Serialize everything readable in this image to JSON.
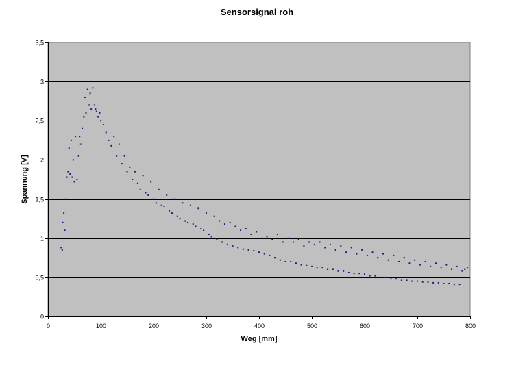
{
  "chart_data": {
    "type": "scatter",
    "title": "Sensorsignal roh",
    "xlabel": "Weg [mm]",
    "ylabel": "Spannung [V]",
    "xlim": [
      0,
      800
    ],
    "ylim": [
      0,
      3.5
    ],
    "x_ticks": [
      "0",
      "100",
      "200",
      "300",
      "400",
      "500",
      "600",
      "700",
      "800"
    ],
    "y_ticks": [
      "0",
      "0,5",
      "1",
      "1,5",
      "2",
      "2,5",
      "3",
      "3,5"
    ],
    "grid": "horizontal",
    "legend": "none",
    "colors": {
      "plot_area": "#c0c0c0",
      "marker": "#1a1a80",
      "gridline": "#000000"
    },
    "series": [
      {
        "values": [
          [
            25,
            0.88
          ],
          [
            27,
            0.85
          ],
          [
            28,
            1.2
          ],
          [
            30,
            1.32
          ],
          [
            32,
            1.1
          ],
          [
            34,
            1.5
          ],
          [
            36,
            1.78
          ],
          [
            38,
            1.85
          ],
          [
            40,
            2.15
          ],
          [
            42,
            1.82
          ],
          [
            44,
            2.25
          ],
          [
            46,
            1.78
          ],
          [
            48,
            2.0
          ],
          [
            50,
            1.72
          ],
          [
            52,
            2.3
          ],
          [
            55,
            1.75
          ],
          [
            58,
            2.05
          ],
          [
            60,
            2.3
          ],
          [
            62,
            2.2
          ],
          [
            65,
            2.4
          ],
          [
            68,
            2.55
          ],
          [
            70,
            2.8
          ],
          [
            72,
            2.6
          ],
          [
            75,
            2.9
          ],
          [
            78,
            2.7
          ],
          [
            80,
            2.85
          ],
          [
            82,
            2.65
          ],
          [
            85,
            2.92
          ],
          [
            88,
            2.7
          ],
          [
            90,
            2.65
          ],
          [
            92,
            2.62
          ],
          [
            95,
            2.55
          ],
          [
            98,
            2.6
          ],
          [
            100,
            2.5
          ],
          [
            105,
            2.45
          ],
          [
            110,
            2.35
          ],
          [
            115,
            2.25
          ],
          [
            120,
            2.18
          ],
          [
            125,
            2.3
          ],
          [
            130,
            2.05
          ],
          [
            135,
            2.2
          ],
          [
            140,
            1.95
          ],
          [
            145,
            2.05
          ],
          [
            150,
            1.85
          ],
          [
            155,
            1.9
          ],
          [
            160,
            1.75
          ],
          [
            165,
            1.85
          ],
          [
            170,
            1.7
          ],
          [
            175,
            1.62
          ],
          [
            180,
            1.8
          ],
          [
            185,
            1.58
          ],
          [
            190,
            1.55
          ],
          [
            195,
            1.72
          ],
          [
            200,
            1.5
          ],
          [
            205,
            1.45
          ],
          [
            210,
            1.62
          ],
          [
            215,
            1.42
          ],
          [
            220,
            1.4
          ],
          [
            225,
            1.55
          ],
          [
            230,
            1.35
          ],
          [
            235,
            1.32
          ],
          [
            240,
            1.5
          ],
          [
            245,
            1.28
          ],
          [
            250,
            1.25
          ],
          [
            255,
            1.45
          ],
          [
            260,
            1.22
          ],
          [
            265,
            1.2
          ],
          [
            270,
            1.42
          ],
          [
            275,
            1.18
          ],
          [
            280,
            1.15
          ],
          [
            285,
            1.38
          ],
          [
            290,
            1.12
          ],
          [
            295,
            1.1
          ],
          [
            300,
            1.32
          ],
          [
            305,
            1.05
          ],
          [
            310,
            1.02
          ],
          [
            315,
            1.28
          ],
          [
            320,
            0.98
          ],
          [
            325,
            1.22
          ],
          [
            330,
            0.95
          ],
          [
            335,
            1.18
          ],
          [
            340,
            0.92
          ],
          [
            345,
            1.2
          ],
          [
            350,
            0.9
          ],
          [
            355,
            1.15
          ],
          [
            360,
            0.88
          ],
          [
            365,
            1.1
          ],
          [
            370,
            0.86
          ],
          [
            375,
            1.12
          ],
          [
            380,
            0.85
          ],
          [
            385,
            1.05
          ],
          [
            390,
            0.84
          ],
          [
            395,
            1.08
          ],
          [
            400,
            0.82
          ],
          [
            405,
            1.0
          ],
          [
            410,
            0.8
          ],
          [
            415,
            1.02
          ],
          [
            420,
            0.78
          ],
          [
            425,
            0.98
          ],
          [
            430,
            0.75
          ],
          [
            435,
            1.05
          ],
          [
            440,
            0.72
          ],
          [
            445,
            0.95
          ],
          [
            450,
            0.7
          ],
          [
            455,
            1.0
          ],
          [
            460,
            0.7
          ],
          [
            465,
            0.95
          ],
          [
            470,
            0.68
          ],
          [
            475,
            0.98
          ],
          [
            480,
            0.66
          ],
          [
            485,
            0.9
          ],
          [
            490,
            0.65
          ],
          [
            495,
            0.95
          ],
          [
            500,
            0.64
          ],
          [
            505,
            0.92
          ],
          [
            510,
            0.62
          ],
          [
            515,
            0.95
          ],
          [
            520,
            0.62
          ],
          [
            525,
            0.88
          ],
          [
            530,
            0.6
          ],
          [
            535,
            0.92
          ],
          [
            540,
            0.6
          ],
          [
            545,
            0.85
          ],
          [
            550,
            0.58
          ],
          [
            555,
            0.9
          ],
          [
            560,
            0.58
          ],
          [
            565,
            0.82
          ],
          [
            570,
            0.56
          ],
          [
            575,
            0.88
          ],
          [
            580,
            0.55
          ],
          [
            585,
            0.8
          ],
          [
            590,
            0.55
          ],
          [
            595,
            0.85
          ],
          [
            600,
            0.54
          ],
          [
            605,
            0.78
          ],
          [
            610,
            0.52
          ],
          [
            615,
            0.82
          ],
          [
            620,
            0.52
          ],
          [
            625,
            0.75
          ],
          [
            630,
            0.5
          ],
          [
            635,
            0.8
          ],
          [
            640,
            0.5
          ],
          [
            645,
            0.72
          ],
          [
            650,
            0.48
          ],
          [
            655,
            0.78
          ],
          [
            660,
            0.48
          ],
          [
            665,
            0.7
          ],
          [
            670,
            0.46
          ],
          [
            675,
            0.75
          ],
          [
            680,
            0.46
          ],
          [
            685,
            0.68
          ],
          [
            690,
            0.45
          ],
          [
            695,
            0.72
          ],
          [
            700,
            0.45
          ],
          [
            705,
            0.66
          ],
          [
            710,
            0.44
          ],
          [
            715,
            0.7
          ],
          [
            720,
            0.44
          ],
          [
            725,
            0.64
          ],
          [
            730,
            0.43
          ],
          [
            735,
            0.68
          ],
          [
            740,
            0.43
          ],
          [
            745,
            0.62
          ],
          [
            750,
            0.42
          ],
          [
            755,
            0.66
          ],
          [
            760,
            0.42
          ],
          [
            765,
            0.6
          ],
          [
            770,
            0.41
          ],
          [
            775,
            0.64
          ],
          [
            780,
            0.41
          ],
          [
            785,
            0.58
          ],
          [
            790,
            0.6
          ],
          [
            795,
            0.62
          ]
        ]
      }
    ]
  }
}
